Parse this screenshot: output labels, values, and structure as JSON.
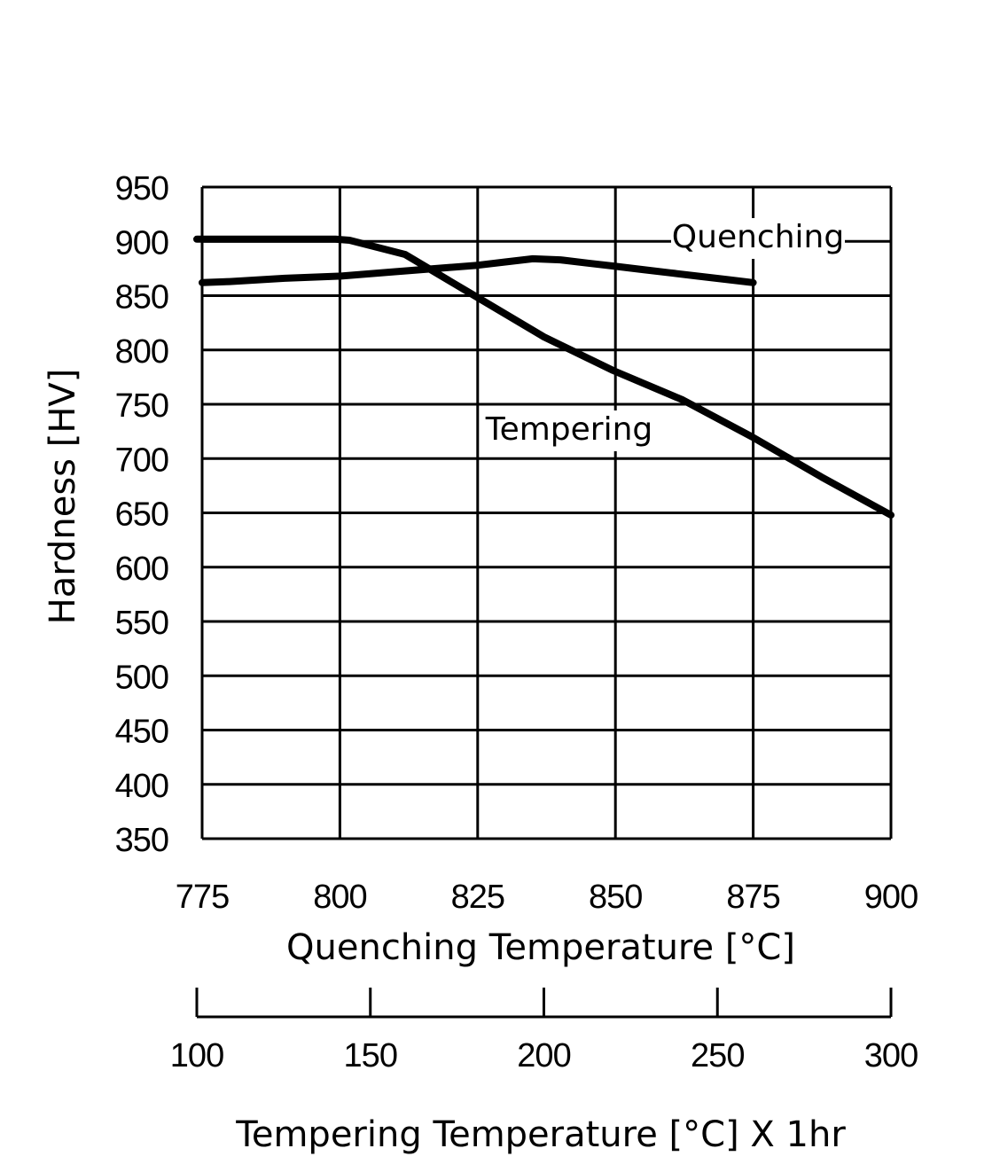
{
  "chart_data": {
    "type": "line",
    "title": "",
    "ylabel": "Hardness [HV]",
    "xlabel": "Quenching Temperature [°C]",
    "x2label": "Tempering Temperature [°C] X 1hr",
    "ylim": [
      350,
      950
    ],
    "xlim": [
      775,
      900
    ],
    "x2lim": [
      100,
      300
    ],
    "y_ticks": [
      "950",
      "900",
      "850",
      "800",
      "750",
      "700",
      "650",
      "600",
      "550",
      "500",
      "450",
      "400",
      "350"
    ],
    "x_ticks": [
      "775",
      "800",
      "825",
      "850",
      "875",
      "900"
    ],
    "x2_ticks": [
      "100",
      "150",
      "200",
      "250",
      "300"
    ],
    "grid": true,
    "series": [
      {
        "name": "Quenching",
        "axis": "x",
        "x": [
          775,
          780,
          790,
          800,
          810,
          820,
          825,
          830,
          835,
          840,
          845,
          850,
          855,
          860,
          865,
          870,
          875
        ],
        "y": [
          862,
          863,
          866,
          868,
          872,
          876,
          878,
          881,
          884,
          883,
          880,
          877,
          874,
          871,
          868,
          865,
          862
        ]
      },
      {
        "name": "Tempering",
        "axis": "x2",
        "x": [
          100,
          120,
          140,
          144,
          160,
          180,
          200,
          220,
          240,
          260,
          280,
          300
        ],
        "y": [
          902,
          902,
          902,
          901,
          888,
          850,
          812,
          781,
          754,
          720,
          683,
          648
        ]
      }
    ]
  }
}
